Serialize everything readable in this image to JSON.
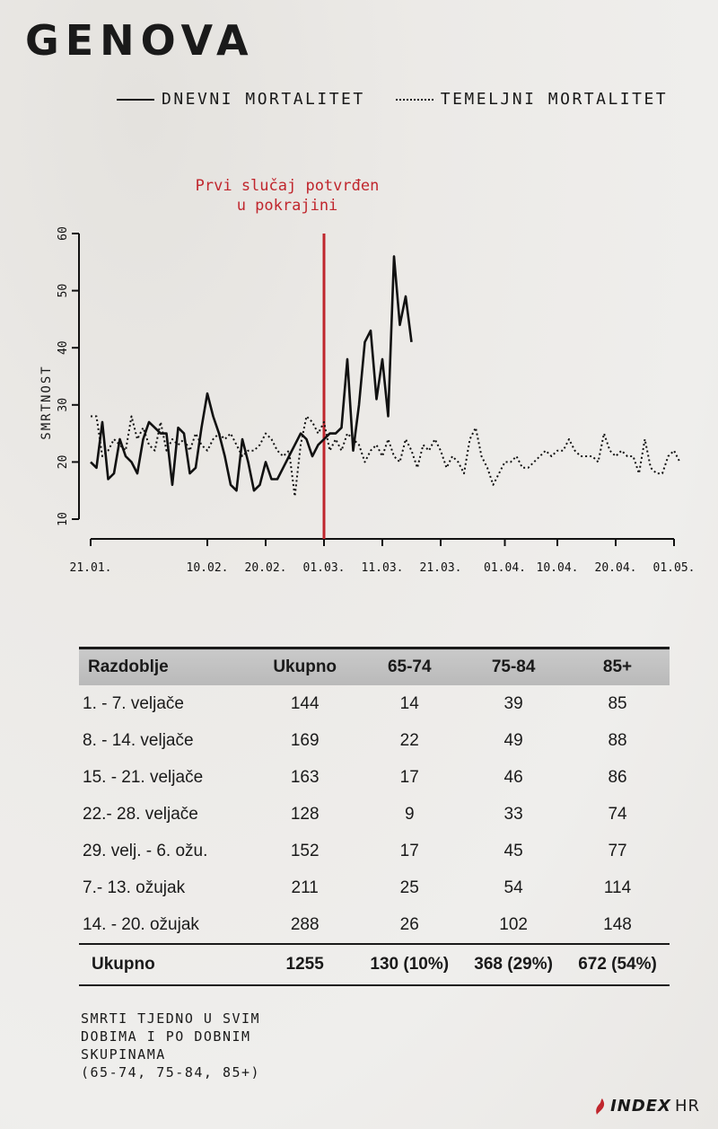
{
  "page": {
    "title": "GENOVA",
    "annotation_line1": "Prvi slučaj potvrđen",
    "annotation_line2": "u pokrajini",
    "legend": {
      "solid_label": "DNEVNI MORTALITET",
      "dotted_label": "TEMELJNI MORTALITET"
    },
    "footnote_lines": [
      "SMRTI TJEDNO U SVIM",
      "DOBIMA I PO DOBNIM",
      "SKUPINAMA",
      "(65-74, 75-84, 85+)"
    ],
    "logo": {
      "bold": "INDEX",
      "light": "HR"
    },
    "colors": {
      "annotation": "#c0262d",
      "line": "#111111",
      "marker": "#c0262d"
    }
  },
  "chart_data": {
    "type": "line",
    "ylabel": "SMRTNOST",
    "ylim": [
      10,
      60
    ],
    "yticks": [
      10,
      20,
      30,
      40,
      50,
      60
    ],
    "x_ticks": [
      {
        "label": "21.01.",
        "day": 0
      },
      {
        "label": "10.02.",
        "day": 20
      },
      {
        "label": "20.02.",
        "day": 30
      },
      {
        "label": "01.03.",
        "day": 40
      },
      {
        "label": "11.03.",
        "day": 50
      },
      {
        "label": "21.03.",
        "day": 60
      },
      {
        "label": "01.04.",
        "day": 71
      },
      {
        "label": "10.04.",
        "day": 80
      },
      {
        "label": "20.04.",
        "day": 90
      },
      {
        "label": "01.05.",
        "day": 100
      }
    ],
    "vertical_marker": {
      "date": "01.03.",
      "day": 40
    },
    "series": [
      {
        "name": "DNEVNI MORTALITET",
        "style": "solid",
        "values": [
          20,
          19,
          27,
          17,
          18,
          24,
          21,
          20,
          18,
          24,
          27,
          26,
          25,
          25,
          16,
          26,
          25,
          18,
          19,
          26,
          32,
          28,
          25,
          21,
          16,
          15,
          24,
          20,
          15,
          16,
          20,
          17,
          17,
          19,
          21,
          23,
          25,
          24,
          21,
          23,
          24,
          25,
          25,
          26,
          38,
          22,
          30,
          41,
          43,
          31,
          38,
          28,
          56,
          44,
          49,
          41
        ]
      },
      {
        "name": "TEMELJNI MORTALITET",
        "style": "dotted",
        "values": [
          28,
          28,
          21,
          22,
          24,
          23,
          22,
          28,
          24,
          26,
          23,
          22,
          27,
          22,
          24,
          23,
          24,
          22,
          25,
          23,
          22,
          24,
          25,
          24,
          25,
          23,
          21,
          22,
          22,
          23,
          25,
          24,
          22,
          21,
          22,
          14,
          23,
          28,
          27,
          25,
          27,
          22,
          24,
          22,
          25,
          24,
          23,
          20,
          22,
          23,
          21,
          24,
          21,
          20,
          24,
          22,
          19,
          23,
          22,
          24,
          22,
          19,
          21,
          20,
          18,
          24,
          26,
          21,
          19,
          16,
          18,
          20,
          20,
          21,
          19,
          19,
          20,
          21,
          22,
          21,
          22,
          22,
          24,
          22,
          21,
          21,
          21,
          20,
          25,
          22,
          21,
          22,
          21,
          21,
          18,
          24,
          19,
          18,
          18,
          21,
          22,
          20
        ]
      }
    ]
  },
  "table": {
    "headers": [
      "Razdoblje",
      "Ukupno",
      "65-74",
      "75-84",
      "85+"
    ],
    "rows": [
      [
        "1. - 7. veljače",
        "144",
        "14",
        "39",
        "85"
      ],
      [
        "8. - 14. veljače",
        "169",
        "22",
        "49",
        "88"
      ],
      [
        "15. - 21. veljače",
        "163",
        "17",
        "46",
        "86"
      ],
      [
        "22.- 28. veljače",
        "128",
        "9",
        "33",
        "74"
      ],
      [
        "29. velj. - 6. ožu.",
        "152",
        "17",
        "45",
        "77"
      ],
      [
        "7.- 13. ožujak",
        "211",
        "25",
        "54",
        "114"
      ],
      [
        "14. - 20. ožujak",
        "288",
        "26",
        "102",
        "148"
      ]
    ],
    "total": [
      "Ukupno",
      "1255",
      "130 (10%)",
      "368 (29%)",
      "672 (54%)"
    ]
  }
}
